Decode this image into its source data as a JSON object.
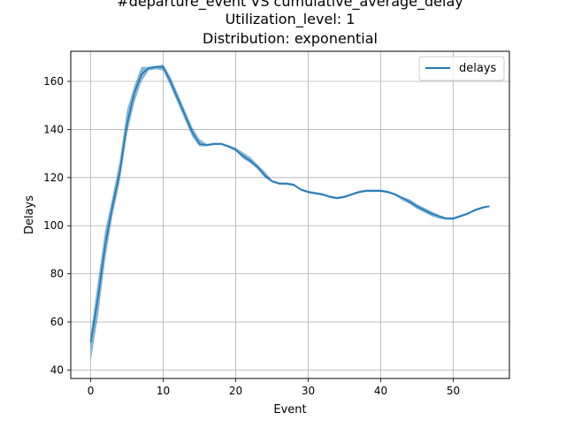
{
  "chart_data": {
    "type": "line",
    "title_lines": [
      "#departure_event VS cumulative_average_delay",
      "Utilization_level: 1",
      "Distribution: exponential"
    ],
    "xlabel": "Event",
    "ylabel": "Delays",
    "xlim": [
      -2.75,
      57.75
    ],
    "ylim": [
      36.5,
      172.5
    ],
    "xticks": [
      0,
      10,
      20,
      30,
      40,
      50
    ],
    "yticks": [
      40,
      60,
      80,
      100,
      120,
      140,
      160
    ],
    "grid": true,
    "legend_position": "top-right",
    "colors": {
      "line": "#1f77b4",
      "band": "#1f77b4",
      "grid": "#b0b0b0"
    },
    "series": [
      {
        "name": "delays",
        "x": [
          0,
          1,
          2,
          3,
          4,
          5,
          6,
          7,
          8,
          9,
          10,
          11,
          12,
          13,
          14,
          15,
          16,
          17,
          18,
          19,
          20,
          21,
          22,
          23,
          24,
          25,
          26,
          27,
          28,
          29,
          30,
          31,
          32,
          33,
          34,
          35,
          36,
          37,
          38,
          39,
          40,
          41,
          42,
          43,
          44,
          45,
          46,
          47,
          48,
          49,
          50,
          51,
          52,
          53,
          54,
          55
        ],
        "y": [
          51.5,
          70,
          92,
          108,
          122,
          142,
          155,
          163,
          165.5,
          166,
          166,
          160,
          153,
          146,
          139,
          134,
          133.5,
          134,
          134,
          133,
          131.5,
          129,
          127,
          124.5,
          121,
          118.5,
          117.5,
          117.5,
          117,
          115,
          114,
          113.5,
          113,
          112,
          111.5,
          112,
          113,
          114,
          114.5,
          114.5,
          114.5,
          114,
          113,
          111.5,
          110,
          108,
          106.5,
          105,
          104,
          103,
          103,
          104,
          105,
          106.5,
          107.5,
          108
        ],
        "band_low": [
          44,
          62,
          86,
          104,
          118,
          138,
          151,
          160,
          164.5,
          165,
          164.5,
          158,
          151,
          144,
          137,
          133,
          133,
          133.5,
          133.5,
          132.5,
          131,
          128,
          126,
          123.5,
          120,
          118,
          117,
          117,
          116.5,
          114.5,
          113.5,
          113,
          112.5,
          111.5,
          111,
          111.5,
          112.5,
          113.5,
          114,
          114,
          114,
          113.5,
          112.5,
          110.5,
          109,
          107,
          105.5,
          104,
          103,
          102.5,
          102.5,
          103.5,
          104.5,
          106,
          107,
          108
        ],
        "band_high": [
          55,
          77,
          98,
          112,
          127,
          148,
          158,
          166,
          166,
          166.5,
          167,
          162,
          155,
          148,
          141,
          136,
          134,
          134.5,
          134.5,
          133.5,
          132.5,
          130.5,
          128.5,
          125.5,
          122.5,
          119,
          118,
          118,
          117.5,
          115.5,
          114.5,
          114,
          113.5,
          112.5,
          112,
          112.5,
          113.5,
          114.5,
          115,
          115,
          115,
          114.5,
          113.5,
          112,
          111,
          109,
          107.5,
          106,
          104.5,
          103.5,
          103.5,
          104.5,
          105.5,
          107,
          108,
          108.5
        ]
      }
    ]
  }
}
